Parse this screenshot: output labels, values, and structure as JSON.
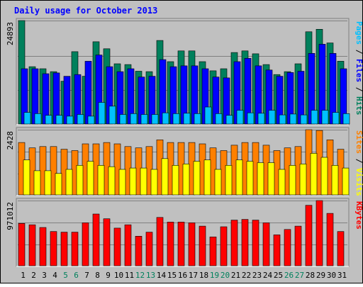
{
  "chart_data": {
    "type": "bar",
    "title": "Daily usage for October 2013",
    "days": [
      "1",
      "2",
      "3",
      "4",
      "5",
      "6",
      "7",
      "8",
      "9",
      "10",
      "11",
      "12",
      "13",
      "14",
      "15",
      "16",
      "17",
      "18",
      "19",
      "20",
      "21",
      "22",
      "23",
      "24",
      "25",
      "26",
      "27",
      "28",
      "29",
      "30",
      "31"
    ],
    "weekend_days": [
      "5",
      "6",
      "12",
      "13",
      "19",
      "20",
      "26",
      "27"
    ],
    "colors": {
      "background": "#c0c0c0",
      "title": "#0000ff",
      "hits": "#00805c",
      "files": "#0000ff",
      "pages": "#00c0ff",
      "visits": "#ff8000",
      "sites": "#ffff00",
      "kbytes": "#ff0000",
      "weekend_label": "#00805c",
      "weekday_label": "#000000"
    },
    "panels": [
      {
        "id": "top",
        "max_label": "24893",
        "ymax": 24893,
        "axis_labels": [
          {
            "text": "Pages",
            "color": "#00c0ff"
          },
          {
            "text": " / ",
            "color": "#000000"
          },
          {
            "text": "Files",
            "color": "#0000ff"
          },
          {
            "text": " / ",
            "color": "#000000"
          },
          {
            "text": "Hits",
            "color": "#00805c"
          }
        ],
        "series": [
          {
            "name": "Hits",
            "color": "#00805c",
            "values": [
              24893,
              13800,
              13300,
              12600,
              10300,
              17400,
              11500,
              19800,
              18100,
              14500,
              14300,
              12700,
              12600,
              20100,
              15000,
              17600,
              17600,
              15000,
              12800,
              13300,
              17200,
              17600,
              16900,
              14300,
              11900,
              12600,
              14500,
              22200,
              22800,
              19500,
              15100
            ]
          },
          {
            "name": "Files",
            "color": "#0000ff",
            "values": [
              13300,
              13300,
              12100,
              12300,
              11500,
              11900,
              15100,
              16600,
              13800,
              12600,
              13300,
              11300,
              11500,
              15500,
              13800,
              14000,
              14000,
              13300,
              11300,
              11100,
              15000,
              15800,
              14000,
              13000,
              11500,
              12400,
              12700,
              17000,
              19200,
              17000,
              13300
            ]
          },
          {
            "name": "Pages",
            "color": "#00c0ff",
            "values": [
              2800,
              2500,
              2100,
              2100,
              1900,
              2300,
              1900,
              5200,
              4300,
              2300,
              2500,
              2300,
              2300,
              2700,
              2500,
              2600,
              2500,
              4100,
              2500,
              2100,
              3300,
              2700,
              2600,
              3300,
              2200,
              2400,
              2200,
              3300,
              3300,
              2800,
              2500
            ]
          }
        ]
      },
      {
        "id": "middle",
        "max_label": "2428",
        "ymax": 2428,
        "axis_labels": [
          {
            "text": "Sites",
            "color": "#ff8000"
          },
          {
            "text": " / ",
            "color": "#000000"
          },
          {
            "text": "Visits",
            "color": "#ffff00"
          }
        ],
        "series": [
          {
            "name": "Visits",
            "color": "#ff8000",
            "values": [
              1950,
              1750,
              1800,
              1800,
              1700,
              1650,
              1900,
              1900,
              1950,
              1900,
              1800,
              1750,
              1800,
              2050,
              1950,
              1950,
              1950,
              1900,
              1750,
              1650,
              1850,
              1950,
              1950,
              1850,
              1650,
              1750,
              1800,
              2428,
              2400,
              2050,
              1700
            ]
          },
          {
            "name": "Sites",
            "color": "#ffff00",
            "values": [
              1300,
              900,
              900,
              800,
              950,
              1100,
              1250,
              1100,
              1050,
              950,
              1000,
              1000,
              950,
              1350,
              1100,
              1150,
              1250,
              1300,
              950,
              1100,
              1300,
              1250,
              1200,
              1200,
              950,
              1100,
              1150,
              1550,
              1400,
              1100,
              1000
            ]
          }
        ]
      },
      {
        "id": "bottom",
        "max_label": "971012",
        "ymax": 971012,
        "axis_labels": [
          {
            "text": "KBytes",
            "color": "#ff0000"
          }
        ],
        "series": [
          {
            "name": "KBytes",
            "color": "#ff0000",
            "values": [
              630000,
              610000,
              570000,
              510000,
              500000,
              500000,
              640000,
              770000,
              700000,
              560000,
              610000,
              440000,
              500000,
              720000,
              650000,
              650000,
              640000,
              590000,
              430000,
              580000,
              680000,
              690000,
              680000,
              640000,
              460000,
              540000,
              590000,
              900000,
              971012,
              780000,
              510000
            ]
          }
        ]
      }
    ]
  }
}
